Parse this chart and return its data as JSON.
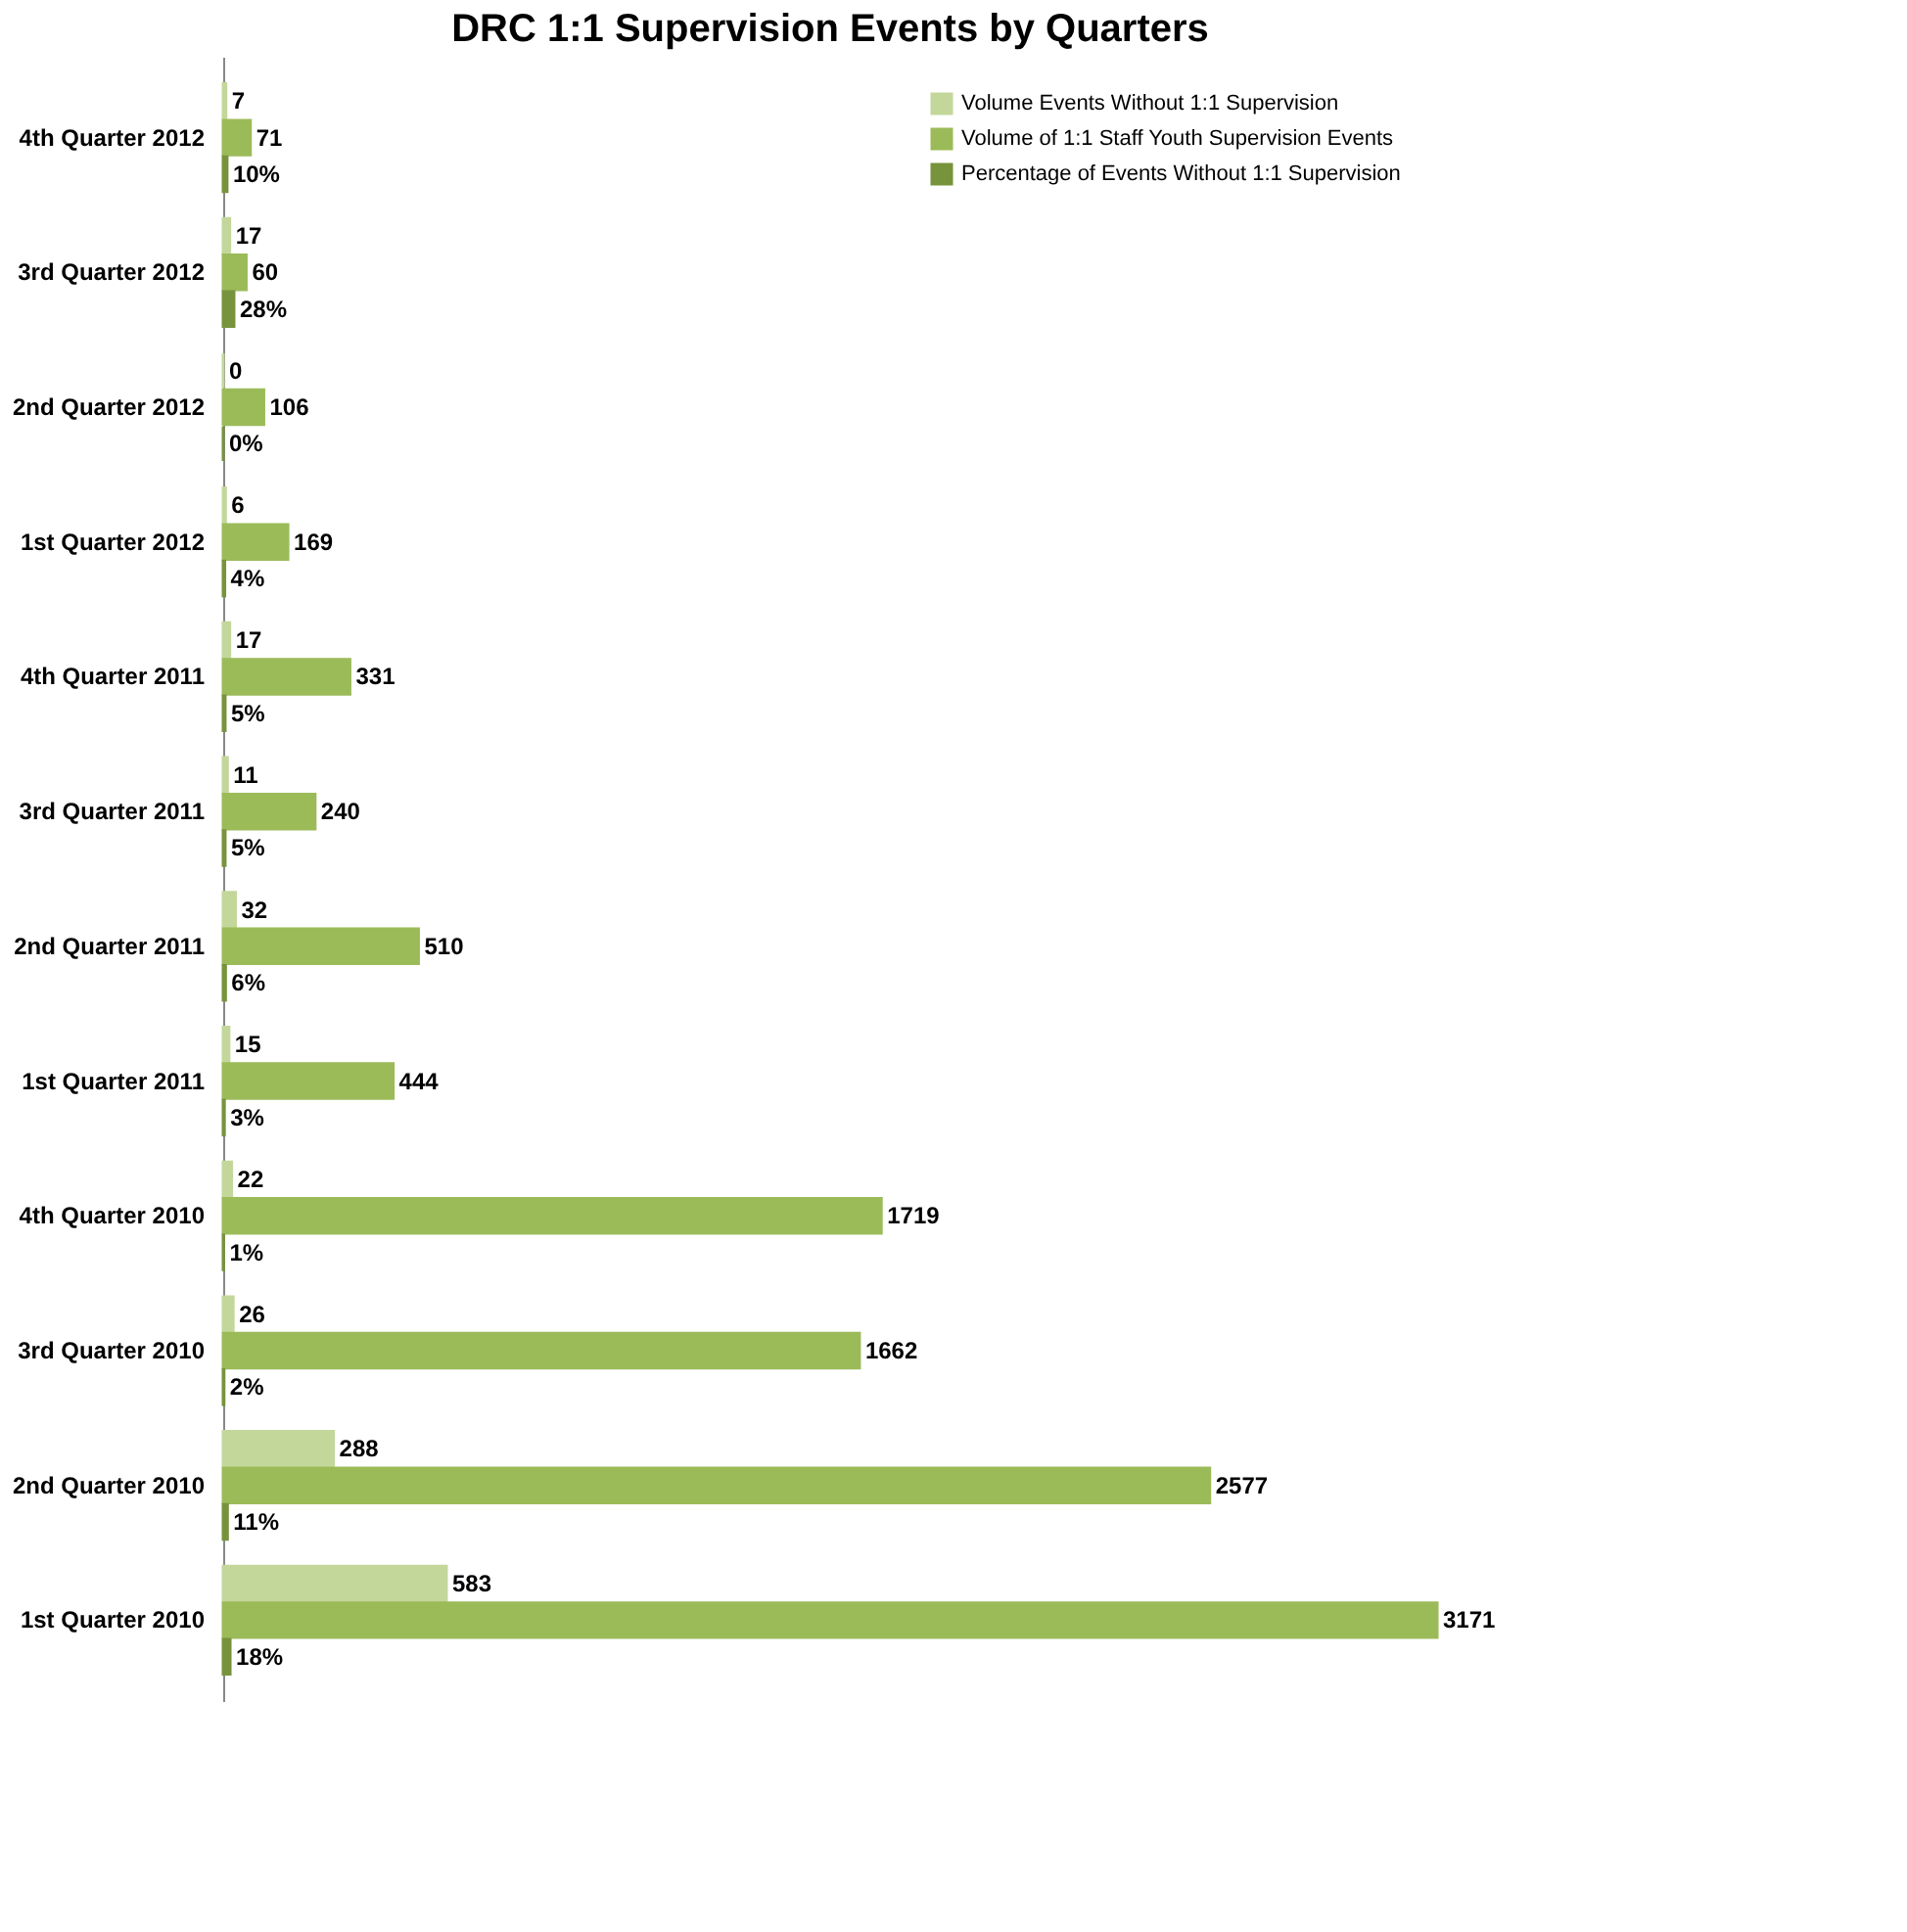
{
  "chart_data": {
    "type": "bar",
    "orientation": "horizontal",
    "title": "DRC 1:1 Supervision Events by Quarters",
    "categories": [
      "4th Quarter 2012",
      "3rd Quarter 2012",
      "2nd Quarter 2012",
      "1st Quarter 2012",
      "4th Quarter 2011",
      "3rd Quarter 2011",
      "2nd Quarter 2011",
      "1st Quarter 2011",
      "4th Quarter 2010",
      "3rd Quarter 2010",
      "2nd Quarter 2010",
      "1st Quarter 2010"
    ],
    "series": [
      {
        "name": "Volume  Events Without 1:1 Supervision",
        "color": "#c4d79b",
        "values": [
          7,
          17,
          0,
          6,
          17,
          11,
          32,
          15,
          22,
          26,
          288,
          583
        ],
        "value_labels": [
          "7",
          "17",
          "0",
          "6",
          "17",
          "11",
          "32",
          "15",
          "22",
          "26",
          "288",
          "583"
        ]
      },
      {
        "name": "Volume of 1:1 Staff Youth Supervision Events",
        "color": "#9bbb59",
        "values": [
          71,
          60,
          106,
          169,
          331,
          240,
          510,
          444,
          1719,
          1662,
          2577,
          3171
        ],
        "value_labels": [
          "71",
          "60",
          "106",
          "169",
          "331",
          "240",
          "510",
          "444",
          "1719",
          "1662",
          "2577",
          "3171"
        ]
      },
      {
        "name": "Percentage of Events Without 1:1 Supervision",
        "color": "#77933c",
        "values": [
          10,
          28,
          0,
          4,
          5,
          5,
          6,
          3,
          1,
          2,
          11,
          18
        ],
        "value_labels": [
          "10%",
          "28%",
          "0%",
          "4%",
          "5%",
          "5%",
          "6%",
          "3%",
          "1%",
          "2%",
          "11%",
          "18%"
        ]
      }
    ],
    "legend": "top right",
    "grid": false
  }
}
